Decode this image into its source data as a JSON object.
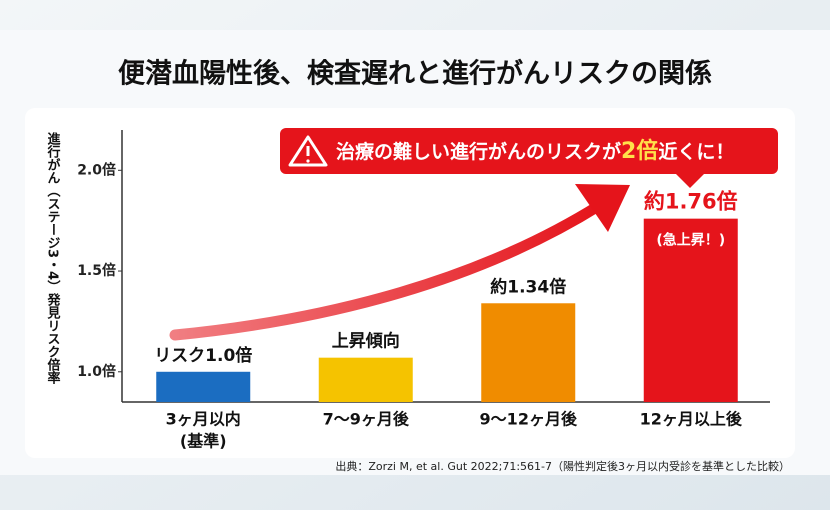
{
  "chart_data": {
    "type": "bar",
    "title": "便潜血陽性後、検査遅れと進行がんリスクの関係",
    "y_label": "進行がん（ステージ3・4）発見リスク倍率",
    "categories": [
      "3ヶ月以内",
      "7〜9ヶ月後",
      "9〜12ヶ月後",
      "12ヶ月以上後"
    ],
    "baseline_note": "(基準)",
    "values": [
      1.0,
      1.07,
      1.34,
      1.76
    ],
    "value_labels": [
      "リスク1.0倍",
      "上昇傾向",
      "約1.34倍",
      "約1.76倍"
    ],
    "colors": [
      "#1b6dc1",
      "#f5c300",
      "#f08c00",
      "#e5141b"
    ],
    "peak_annotation": "(急上昇！)",
    "callout": [
      "治療の難しい進行がんのリスクが",
      "2倍",
      "近くに！"
    ],
    "ylim": [
      0.85,
      2.2
    ],
    "yticks": [
      {
        "value": 1.0,
        "label": "1.0倍"
      },
      {
        "value": 1.5,
        "label": "1.5倍"
      },
      {
        "value": 2.0,
        "label": "2.0倍"
      }
    ],
    "source": "出典：Zorzi M, et al. Gut 2022;71:561-7（陽性判定後3ヶ月以内受診を基準とした比較）"
  }
}
